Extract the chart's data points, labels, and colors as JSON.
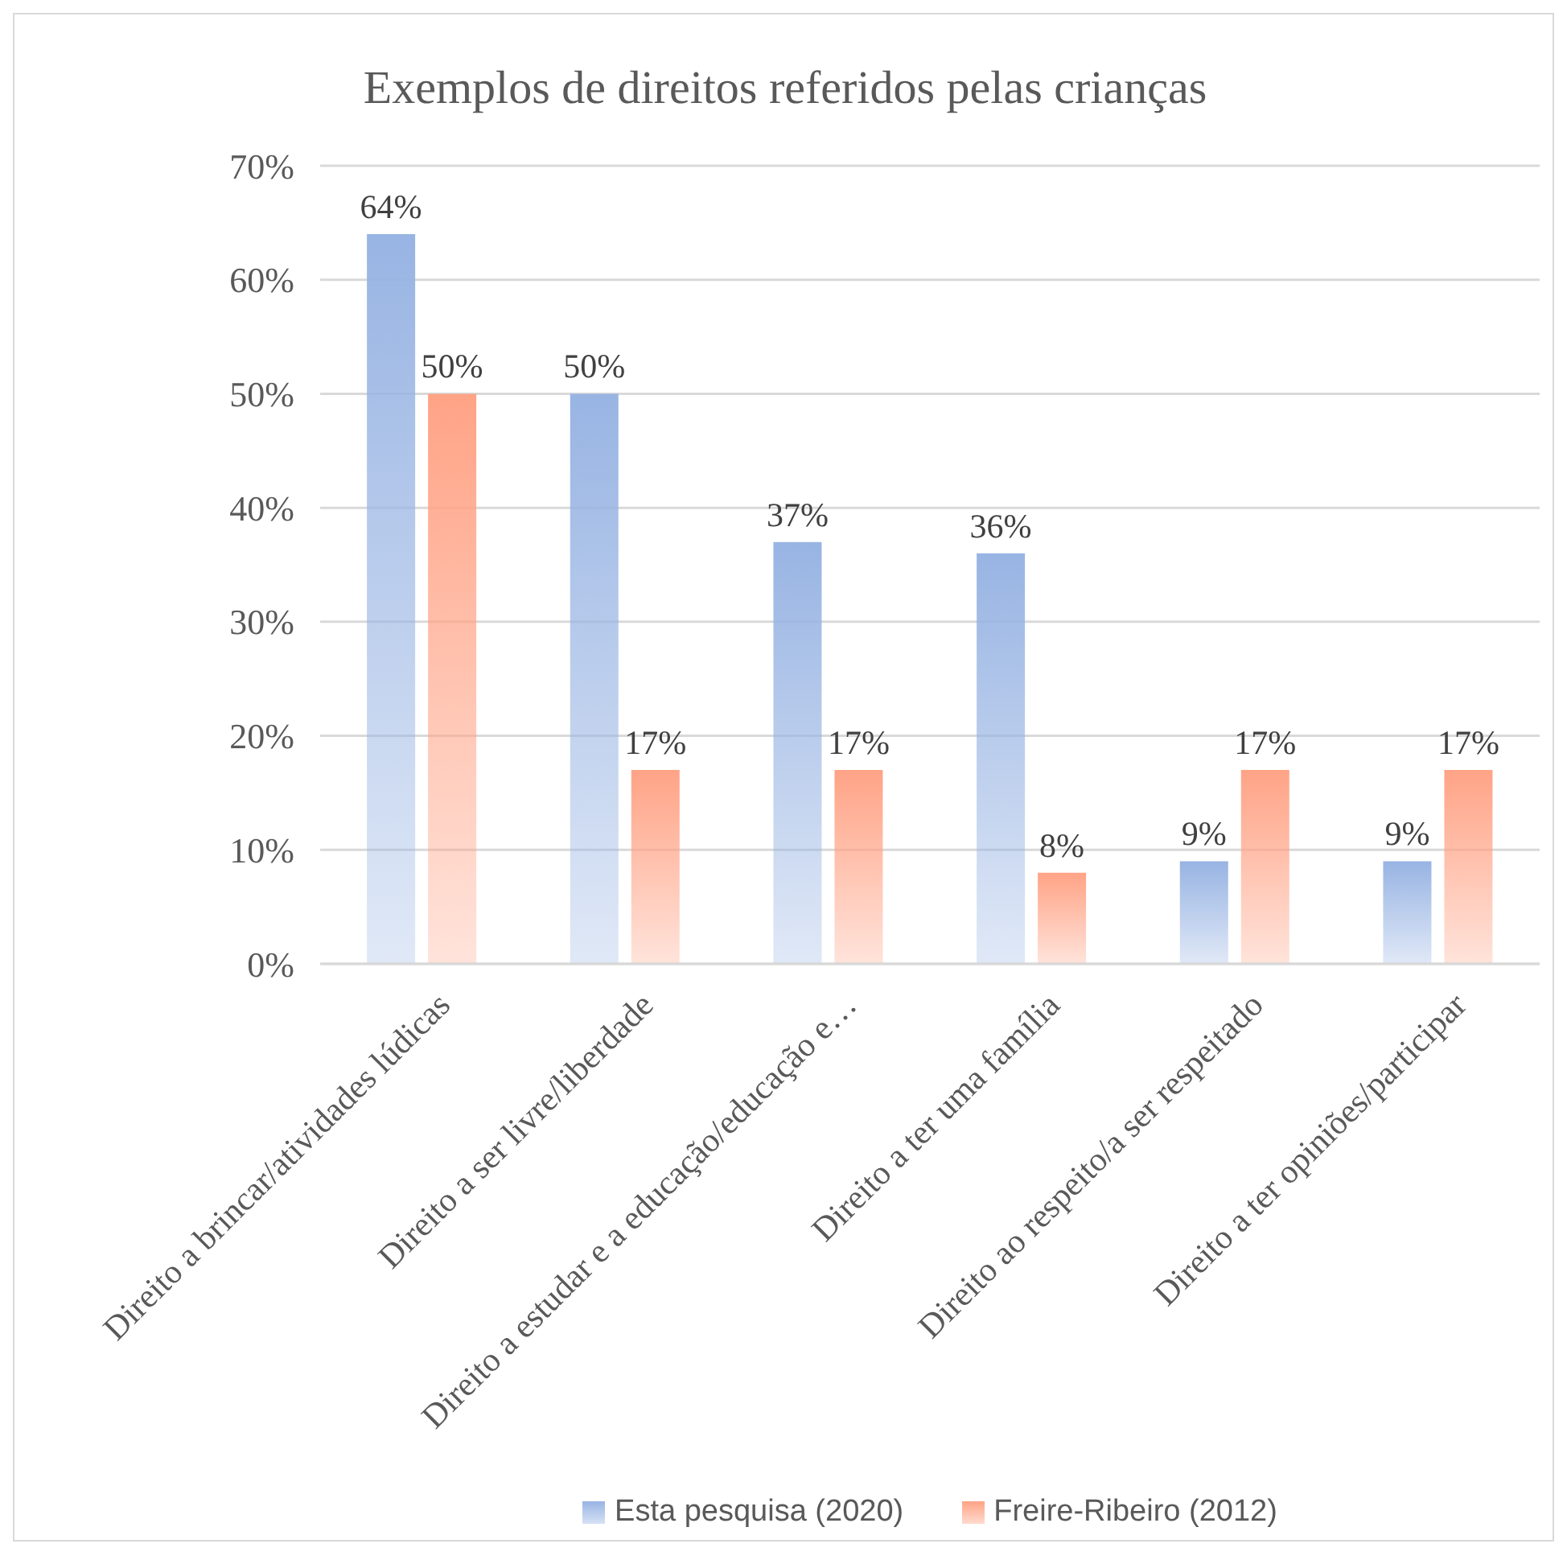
{
  "chart_data": {
    "type": "bar",
    "title": "Exemplos de direitos referidos pelas crianças",
    "categories": [
      "Direito a brincar/atividades lúdicas",
      "Direito a ser livre/liberdade",
      "Direito a estudar  e a educação/educação e…",
      "Direito a ter uma família",
      "Direito ao respeito/a ser respeitado",
      "Direito a ter opiniões/participar"
    ],
    "series": [
      {
        "name": "Esta pesquisa (2020)",
        "color": "#98b4e3",
        "values": [
          64,
          50,
          37,
          36,
          9,
          9
        ],
        "value_labels": [
          "64%",
          "50%",
          "37%",
          "36%",
          "9%",
          "9%"
        ]
      },
      {
        "name": "Freire-Ribeiro (2012)",
        "color": "#ffa386",
        "values": [
          50,
          17,
          17,
          8,
          17,
          17
        ],
        "value_labels": [
          "50%",
          "17%",
          "17%",
          "8%",
          "17%",
          "17%"
        ]
      }
    ],
    "ylim": [
      0,
      70
    ],
    "yticks": [
      {
        "value": 0,
        "label": "0%"
      },
      {
        "value": 10,
        "label": "10%"
      },
      {
        "value": 20,
        "label": "20%"
      },
      {
        "value": 30,
        "label": "30%"
      },
      {
        "value": 40,
        "label": "40%"
      },
      {
        "value": 50,
        "label": "50%"
      },
      {
        "value": 60,
        "label": "60%"
      },
      {
        "value": 70,
        "label": "70%"
      }
    ],
    "grid": "y",
    "legend": "bottom"
  }
}
